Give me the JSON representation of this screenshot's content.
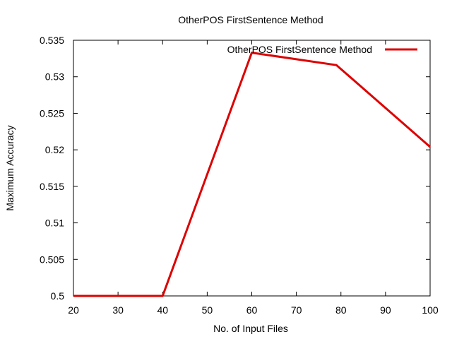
{
  "chart_data": {
    "type": "line",
    "title": "OtherPOS FirstSentence Method",
    "xlabel": "No. of Input Files",
    "ylabel": "Maximum Accuracy",
    "xlim": [
      20,
      100
    ],
    "ylim": [
      0.5,
      0.535
    ],
    "x_ticks": [
      "20",
      "30",
      "40",
      "50",
      "60",
      "70",
      "80",
      "90",
      "100"
    ],
    "y_ticks": [
      "0.5",
      "0.505",
      "0.51",
      "0.515",
      "0.52",
      "0.525",
      "0.53",
      "0.535"
    ],
    "grid": false,
    "legend_position": "top-right",
    "series": [
      {
        "name": "OtherPOS FirstSentence Method",
        "color": "#dd0000",
        "x": [
          20,
          40,
          60,
          79,
          100
        ],
        "y": [
          0.5,
          0.5,
          0.5333,
          0.5316,
          0.5204
        ]
      }
    ]
  }
}
